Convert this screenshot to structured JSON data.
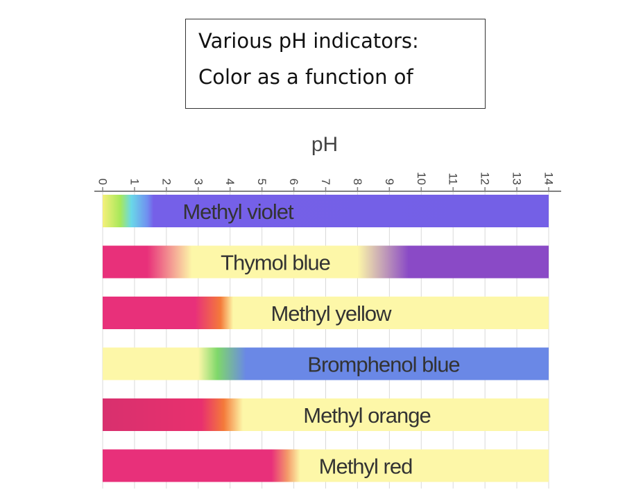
{
  "title_box": {
    "line1": "Various pH indicators:",
    "line2": "Color as a function of"
  },
  "chart_data": {
    "type": "bar",
    "xlabel": "pH",
    "xlim": [
      0,
      14
    ],
    "ticks": [
      "0",
      "1",
      "2",
      "3",
      "4",
      "5",
      "6",
      "7",
      "8",
      "9",
      "10",
      "11",
      "12",
      "13",
      "14"
    ],
    "grid": true,
    "rows": [
      {
        "name": "Methyl violet",
        "range": [
          0,
          14
        ],
        "stops": [
          {
            "ph": 0.0,
            "color": "#f5f07a"
          },
          {
            "ph": 0.55,
            "color": "#a8e85a"
          },
          {
            "ph": 0.9,
            "color": "#6ad8e8"
          },
          {
            "ph": 1.4,
            "color": "#7090f0"
          },
          {
            "ph": 1.6,
            "color": "#7560e8"
          },
          {
            "ph": 14.0,
            "color": "#7460e6"
          }
        ]
      },
      {
        "name": "Thymol blue",
        "range": [
          0,
          14
        ],
        "stops": [
          {
            "ph": 0.0,
            "color": "#e8307a"
          },
          {
            "ph": 1.4,
            "color": "#e8307a"
          },
          {
            "ph": 2.8,
            "color": "#fdf7a8"
          },
          {
            "ph": 8.0,
            "color": "#fdf7a8"
          },
          {
            "ph": 9.6,
            "color": "#8a4ac6"
          },
          {
            "ph": 14.0,
            "color": "#8a4ac6"
          }
        ]
      },
      {
        "name": "Methyl yellow",
        "range": [
          0,
          14
        ],
        "stops": [
          {
            "ph": 0.0,
            "color": "#e8307a"
          },
          {
            "ph": 2.9,
            "color": "#e8307a"
          },
          {
            "ph": 3.7,
            "color": "#f47a3a"
          },
          {
            "ph": 4.1,
            "color": "#fdf7a8"
          },
          {
            "ph": 14.0,
            "color": "#fdf7a8"
          }
        ]
      },
      {
        "name": "Bromphenol blue",
        "range": [
          0,
          14
        ],
        "stops": [
          {
            "ph": 0.0,
            "color": "#fdf7a8"
          },
          {
            "ph": 3.0,
            "color": "#fdf7a8"
          },
          {
            "ph": 3.6,
            "color": "#7fd86a"
          },
          {
            "ph": 4.5,
            "color": "#6a88e6"
          },
          {
            "ph": 14.0,
            "color": "#6a88e6"
          }
        ]
      },
      {
        "name": "Methyl orange",
        "range": [
          0,
          14
        ],
        "stops": [
          {
            "ph": 0.0,
            "color": "#d8306e"
          },
          {
            "ph": 3.1,
            "color": "#e8306e"
          },
          {
            "ph": 3.8,
            "color": "#f47a3a"
          },
          {
            "ph": 4.4,
            "color": "#fdf7a8"
          },
          {
            "ph": 14.0,
            "color": "#fdf7a8"
          }
        ]
      },
      {
        "name": "Methyl red",
        "range": [
          0,
          14
        ],
        "stops": [
          {
            "ph": 0.0,
            "color": "#e8307a"
          },
          {
            "ph": 5.3,
            "color": "#e8307a"
          },
          {
            "ph": 5.8,
            "color": "#f49a6a"
          },
          {
            "ph": 6.2,
            "color": "#fdf7a8"
          },
          {
            "ph": 14.0,
            "color": "#fdf7a8"
          }
        ]
      }
    ]
  }
}
